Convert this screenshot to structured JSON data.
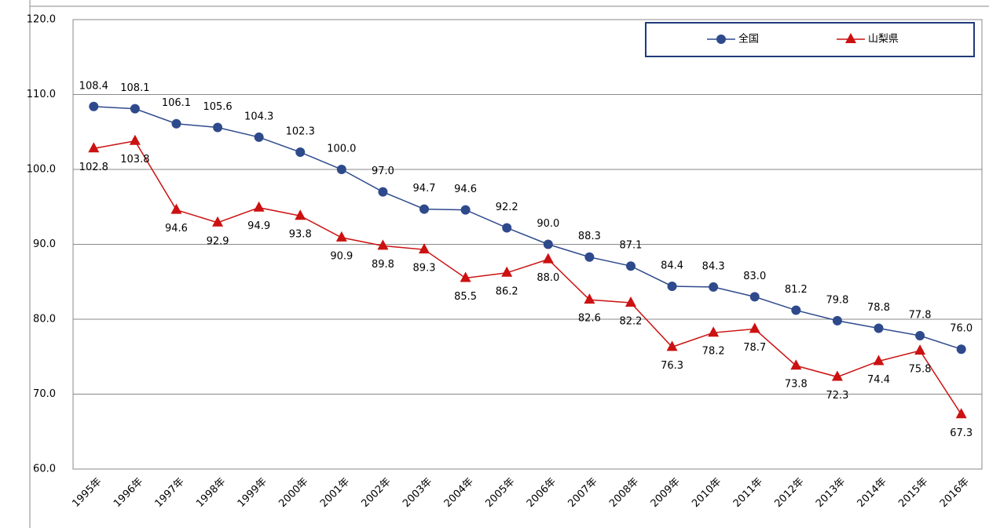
{
  "chart_data": {
    "type": "line",
    "categories": [
      "1995年",
      "1996年",
      "1997年",
      "1998年",
      "1999年",
      "2000年",
      "2001年",
      "2002年",
      "2003年",
      "2004年",
      "2005年",
      "2006年",
      "2007年",
      "2008年",
      "2009年",
      "2010年",
      "2011年",
      "2012年",
      "2013年",
      "2014年",
      "2015年",
      "2016年"
    ],
    "series": [
      {
        "name": "全国",
        "color": "#2e4a8c",
        "marker": "circle",
        "values": [
          108.4,
          108.1,
          106.1,
          105.6,
          104.3,
          102.3,
          100.0,
          97.0,
          94.7,
          94.6,
          92.2,
          90.0,
          88.3,
          87.1,
          84.4,
          84.3,
          83.0,
          81.2,
          79.8,
          78.8,
          77.8,
          76.0
        ],
        "value_labels": [
          "108.4",
          "108.1",
          "106.1",
          "105.6",
          "104.3",
          "102.3",
          "100.0",
          "97.0",
          "94.7",
          "94.6",
          "92.2",
          "90.0",
          "88.3",
          "87.1",
          "84.4",
          "84.3",
          "83.0",
          "81.2",
          "79.8",
          "78.8",
          "77.8",
          "76.0"
        ]
      },
      {
        "name": "山梨県",
        "color": "#cc1111",
        "marker": "triangle",
        "values": [
          102.8,
          103.8,
          94.6,
          92.9,
          94.9,
          93.8,
          90.9,
          89.8,
          89.3,
          85.5,
          86.2,
          88.0,
          82.6,
          82.2,
          76.3,
          78.2,
          78.7,
          73.8,
          72.3,
          74.4,
          75.8,
          67.3
        ],
        "value_labels": [
          "102.8",
          "103.8",
          "94.6",
          "92.9",
          "94.9",
          "93.8",
          "90.9",
          "89.8",
          "89.3",
          "85.5",
          "86.2",
          "88.0",
          "82.6",
          "82.2",
          "76.3",
          "78.2",
          "78.7",
          "73.8",
          "72.3",
          "74.4",
          "75.8",
          "67.3"
        ]
      }
    ],
    "ylim": [
      60,
      120
    ],
    "yticks": [
      {
        "value": 60,
        "label": "60.0"
      },
      {
        "value": 70,
        "label": "70.0"
      },
      {
        "value": 80,
        "label": "80.0"
      },
      {
        "value": 90,
        "label": "90.0"
      },
      {
        "value": 100,
        "label": "100.0"
      },
      {
        "value": 110,
        "label": "110.0"
      },
      {
        "value": 120,
        "label": "120.0"
      }
    ],
    "grid": true,
    "legend": "top-right"
  }
}
